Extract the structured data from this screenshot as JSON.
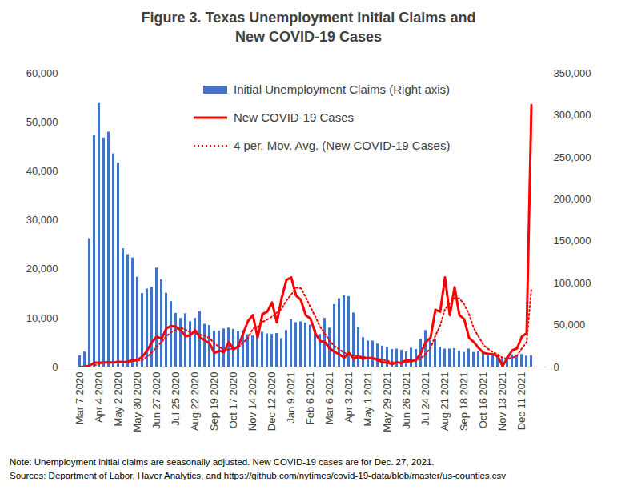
{
  "chart_data": {
    "type": "combo",
    "title": "Figure 3. Texas Unemployment Initial Claims and New COVID-19 Cases",
    "notes": [
      "Note: Unemployment initial claims are seasonally adjusted. New COVID-19 cases are for Dec. 27, 2021.",
      "Sources: Department of Labor, Haver Analytics, and https://github.com/nytimes/covid-19-data/blob/master/us-counties.csv"
    ],
    "legend": "top",
    "grid": false,
    "categories": [
      "Mar 7 2020",
      null,
      null,
      null,
      "Apr 4 2020",
      null,
      null,
      null,
      "May 2 2020",
      null,
      null,
      null,
      "May 30 2020",
      null,
      null,
      null,
      "Jun 27 2020",
      null,
      null,
      null,
      "Jul 25 2020",
      null,
      null,
      null,
      "Aug 22 2020",
      null,
      null,
      null,
      "Sep 19 2020",
      null,
      null,
      null,
      "Oct 17 2020",
      null,
      null,
      null,
      "Nov 14 2020",
      null,
      null,
      null,
      "Dec 12 2020",
      null,
      null,
      null,
      "Jan 9 2021",
      null,
      null,
      null,
      "Feb 6 2021",
      null,
      null,
      null,
      "Mar 6 2021",
      null,
      null,
      null,
      "Apr 3 2021",
      null,
      null,
      null,
      "May 1 2021",
      null,
      null,
      null,
      "May 29 2021",
      null,
      null,
      null,
      "Jun 26 2021",
      null,
      null,
      null,
      "Jul 24 2021",
      null,
      null,
      null,
      "Aug 21 2021",
      null,
      null,
      null,
      "Sep 18 2021",
      null,
      null,
      null,
      "Oct 16 2021",
      null,
      null,
      null,
      "Nov 13 2021",
      null,
      null,
      null,
      "Dec 11 2021",
      null,
      null
    ],
    "ylim": [
      0,
      60000
    ],
    "yticks": [
      0,
      {
        "value": 10000,
        "label": "10,000"
      },
      {
        "value": 20000,
        "label": "20,000"
      },
      {
        "value": 30000,
        "label": "30,000"
      },
      {
        "value": 40000,
        "label": "40,000"
      },
      {
        "value": 50000,
        "label": "50,000"
      },
      {
        "value": 60000,
        "label": "60,000"
      }
    ],
    "y2lim": [
      0,
      350000
    ],
    "y2ticks": [
      0,
      {
        "value": 50000,
        "label": "50,000"
      },
      {
        "value": 100000,
        "label": "100,000"
      },
      {
        "value": 150000,
        "label": "150,000"
      },
      {
        "value": 200000,
        "label": "200,000"
      },
      {
        "value": 250000,
        "label": "250,000"
      },
      {
        "value": 300000,
        "label": "300,000"
      },
      {
        "value": 350000,
        "label": "350,000"
      }
    ],
    "series": [
      {
        "name": "Initial Unemployment Claims (Right axis)",
        "type": "bar",
        "axis": "y2",
        "color": "#4472c4",
        "values": [
          13400,
          18000,
          153000,
          276000,
          314000,
          273000,
          280000,
          254000,
          243000,
          141000,
          134000,
          130000,
          107000,
          87500,
          93000,
          95000,
          118000,
          104000,
          88000,
          78000,
          64000,
          58000,
          63500,
          54000,
          58000,
          66000,
          51000,
          49500,
          42500,
          43000,
          45500,
          46500,
          45000,
          42000,
          43500,
          38500,
          37000,
          42500,
          41500,
          39500,
          39000,
          40000,
          34000,
          43500,
          56500,
          53000,
          54000,
          52500,
          50000,
          44500,
          39000,
          58000,
          46500,
          74500,
          81500,
          85000,
          84000,
          64500,
          47000,
          35000,
          31000,
          31000,
          27500,
          25000,
          23500,
          21000,
          21500,
          20000,
          18000,
          22500,
          21000,
          33000,
          43500,
          31500,
          32500,
          23500,
          21500,
          21500,
          22000,
          19000,
          17500,
          21500,
          17500,
          18500,
          17500,
          15000,
          14000,
          13500,
          11500,
          12000,
          14500,
          14000,
          15000,
          13000,
          13500
        ]
      },
      {
        "name": "New COVID-19 Cases",
        "type": "line",
        "line_style": "solid",
        "color": "#ff0000",
        "values": [
          0,
          100,
          300,
          900,
          900,
          900,
          1000,
          900,
          1100,
          1000,
          1100,
          1400,
          1500,
          2100,
          3400,
          5100,
          6200,
          5800,
          7900,
          8400,
          8200,
          7500,
          6300,
          6500,
          7500,
          6000,
          5500,
          4800,
          2900,
          3300,
          3100,
          5100,
          3600,
          4300,
          6900,
          9400,
          10600,
          6000,
          10800,
          11300,
          13200,
          9100,
          14100,
          17800,
          18300,
          14600,
          13700,
          10600,
          9900,
          6900,
          5300,
          5100,
          3800,
          3100,
          2600,
          1900,
          2900,
          1700,
          2100,
          1700,
          1900,
          1800,
          1400,
          1000,
          900,
          600,
          1000,
          800,
          1500,
          1200,
          1500,
          2900,
          5100,
          6000,
          11700,
          11300,
          18300,
          10600,
          16300,
          10600,
          9800,
          6000,
          5100,
          3900,
          2900,
          2700,
          2600,
          2200,
          200,
          1900,
          3400,
          3800,
          6200,
          6900,
          53500
        ]
      },
      {
        "name": "4 per. Mov. Avg. (New COVID-19 Cases)",
        "type": "line",
        "line_style": "dotted",
        "color": "#ff0000",
        "values": [
          null,
          null,
          null,
          300,
          600,
          900,
          900,
          900,
          1000,
          1000,
          1000,
          1200,
          1300,
          1500,
          2100,
          3000,
          4200,
          5100,
          6300,
          7100,
          7600,
          8000,
          7600,
          7100,
          6900,
          6600,
          6400,
          5900,
          4800,
          4100,
          3500,
          3600,
          3800,
          4000,
          5000,
          6000,
          7800,
          8200,
          9200,
          9700,
          10300,
          11100,
          11900,
          13600,
          14800,
          16200,
          16100,
          14300,
          12200,
          10300,
          8200,
          6800,
          5300,
          4300,
          3600,
          2900,
          2600,
          2300,
          2200,
          2100,
          1900,
          1800,
          1700,
          1500,
          1300,
          1000,
          900,
          800,
          1000,
          1100,
          1300,
          1800,
          2700,
          3900,
          6400,
          8500,
          11800,
          13000,
          14100,
          14000,
          12800,
          10800,
          7900,
          6200,
          4500,
          3700,
          3000,
          2600,
          1900,
          1700,
          1900,
          2300,
          3800,
          5100,
          16000
        ]
      }
    ]
  }
}
